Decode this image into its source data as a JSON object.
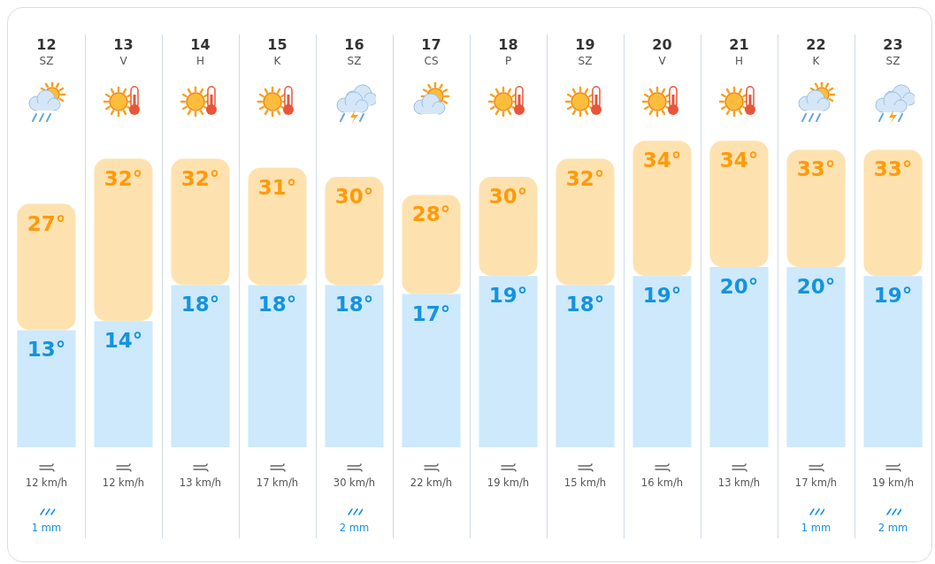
{
  "chart_data": {
    "type": "bar",
    "stacked": true,
    "categories": [
      "12\nSZ",
      "13\nV",
      "14\nH",
      "15\nK",
      "16\nSZ",
      "17\nCS",
      "18\nP",
      "19\nSZ",
      "20\nV",
      "21\nH",
      "22\nK",
      "23\nSZ"
    ],
    "series": [
      {
        "color": "#cde9fb",
        "values": [
          13,
          14,
          18,
          18,
          18,
          17,
          19,
          18,
          19,
          20,
          20,
          19
        ],
        "value_labels": [
          "13°",
          "14°",
          "18°",
          "18°",
          "18°",
          "17°",
          "19°",
          "18°",
          "19°",
          "20°",
          "20°",
          "19°"
        ]
      },
      {
        "color": "#fde2b0",
        "values": [
          14,
          18,
          14,
          13,
          12,
          11,
          11,
          14,
          15,
          14,
          13,
          14
        ]
      }
    ],
    "totals": [
      "27°",
      "32°",
      "32°",
      "31°",
      "30°",
      "28°",
      "30°",
      "32°",
      "34°",
      "34°",
      "33°",
      "33°"
    ],
    "annotations": [
      "12 km/h",
      "12 km/h",
      "13 km/h",
      "17 km/h",
      "30 km/h",
      "22 km/h",
      "19 km/h",
      "15 km/h",
      "16 km/h",
      "13 km/h",
      "17 km/h",
      "19 km/h",
      "1 mm",
      null,
      null,
      null,
      "2 mm",
      null,
      null,
      null,
      null,
      null,
      "1 mm",
      "2 mm"
    ]
  }
}
